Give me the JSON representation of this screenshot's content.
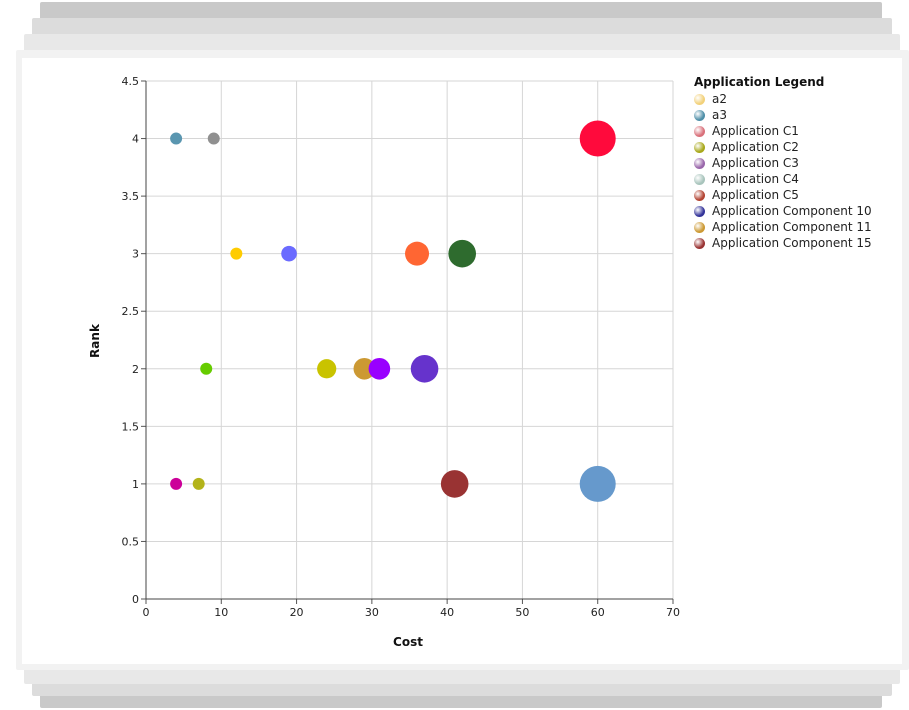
{
  "chart_data": {
    "type": "scatter",
    "xlabel": "Cost",
    "ylabel": "Rank",
    "xlim": [
      0,
      70
    ],
    "ylim": [
      0,
      4.5
    ],
    "x_ticks": [
      "0",
      "10",
      "20",
      "30",
      "40",
      "50",
      "60",
      "70"
    ],
    "y_ticks": [
      "0",
      "0.5",
      "1",
      "1.5",
      "2",
      "2.5",
      "3",
      "3.5",
      "4",
      "4.5"
    ],
    "grid": true,
    "legend_position": "right",
    "points": [
      {
        "x": 4,
        "y": 4,
        "size": 1,
        "color": "#5a96b0"
      },
      {
        "x": 9,
        "y": 4,
        "size": 1,
        "color": "#909090"
      },
      {
        "x": 60,
        "y": 4,
        "size": 3,
        "color": "#ff0a3c"
      },
      {
        "x": 12,
        "y": 3,
        "size": 1,
        "color": "#ffcc00"
      },
      {
        "x": 19,
        "y": 3,
        "size": 1.3,
        "color": "#6b6bff"
      },
      {
        "x": 36,
        "y": 3,
        "size": 2,
        "color": "#ff6633"
      },
      {
        "x": 42,
        "y": 3,
        "size": 2.3,
        "color": "#2e6b2e"
      },
      {
        "x": 8,
        "y": 2,
        "size": 1,
        "color": "#66cc00"
      },
      {
        "x": 24,
        "y": 2,
        "size": 1.6,
        "color": "#c9c300"
      },
      {
        "x": 29,
        "y": 2,
        "size": 1.8,
        "color": "#cc9933"
      },
      {
        "x": 31,
        "y": 2,
        "size": 1.8,
        "color": "#9900ff"
      },
      {
        "x": 37,
        "y": 2,
        "size": 2.3,
        "color": "#6633cc"
      },
      {
        "x": 4,
        "y": 1,
        "size": 1,
        "color": "#cc0099"
      },
      {
        "x": 7,
        "y": 1,
        "size": 1,
        "color": "#b3b31a"
      },
      {
        "x": 41,
        "y": 1,
        "size": 2.3,
        "color": "#993333"
      },
      {
        "x": 60,
        "y": 1,
        "size": 3,
        "color": "#6699cc"
      }
    ]
  },
  "legend": {
    "title": "Application Legend",
    "items": [
      {
        "label": "a2",
        "color": "#f2d17a"
      },
      {
        "label": "a3",
        "color": "#4f8fa8"
      },
      {
        "label": "Application C1",
        "color": "#d9707a"
      },
      {
        "label": "Application C2",
        "color": "#a8a81a"
      },
      {
        "label": "Application C3",
        "color": "#9966aa"
      },
      {
        "label": "Application C4",
        "color": "#a8c4bc"
      },
      {
        "label": "Application C5",
        "color": "#b34433"
      },
      {
        "label": "Application Component 10",
        "color": "#333399"
      },
      {
        "label": "Application Component 11",
        "color": "#cc9933"
      },
      {
        "label": "Application Component 15",
        "color": "#993333"
      }
    ]
  }
}
